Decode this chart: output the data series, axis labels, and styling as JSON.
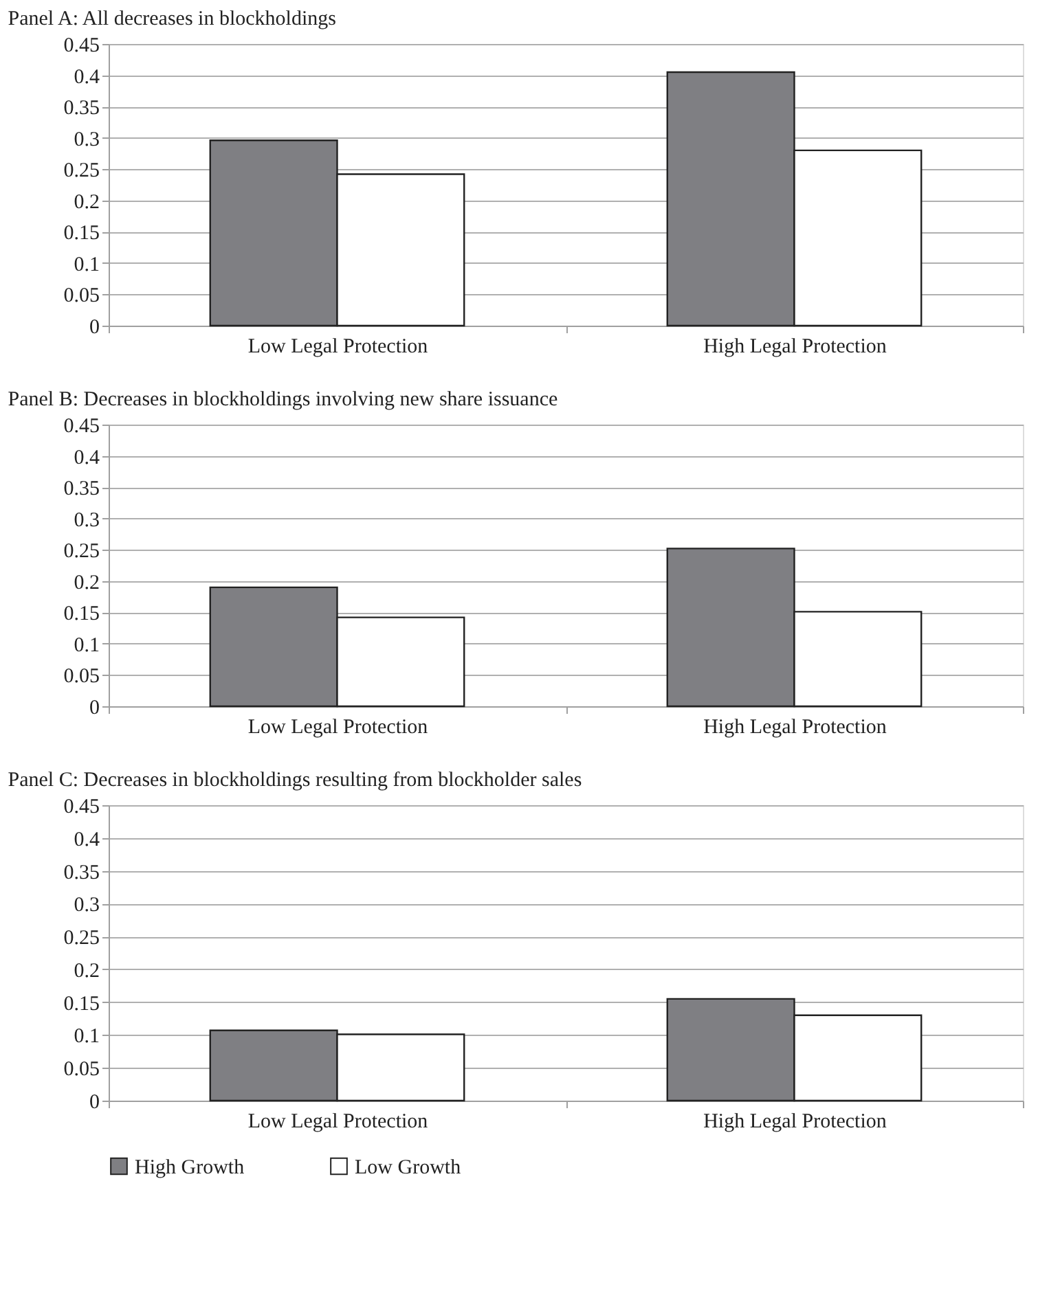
{
  "chart_data": [
    {
      "type": "bar",
      "title": "Panel A: All decreases in blockholdings",
      "categories": [
        "Low Legal Protection",
        "High Legal Protection"
      ],
      "series": [
        {
          "color": "#7f7f83",
          "values": [
            0.296,
            0.405
          ]
        },
        {
          "color": "#ffffff",
          "values": [
            0.242,
            0.28
          ]
        }
      ],
      "ylim": [
        0,
        0.45
      ],
      "yticks": [
        0,
        0.05,
        0.1,
        0.15,
        0.2,
        0.25,
        0.3,
        0.35,
        0.4,
        0.45
      ],
      "grid": "y"
    },
    {
      "type": "bar",
      "title": "Panel B: Decreases in blockholdings involving new share issuance",
      "categories": [
        "Low Legal Protection",
        "High Legal Protection"
      ],
      "series": [
        {
          "color": "#7f7f83",
          "values": [
            0.19,
            0.252
          ]
        },
        {
          "color": "#ffffff",
          "values": [
            0.142,
            0.151
          ]
        }
      ],
      "ylim": [
        0,
        0.45
      ],
      "yticks": [
        0,
        0.05,
        0.1,
        0.15,
        0.2,
        0.25,
        0.3,
        0.35,
        0.4,
        0.45
      ],
      "grid": "y"
    },
    {
      "type": "bar",
      "title": "Panel C: Decreases in blockholdings resulting from  blockholder sales",
      "categories": [
        "Low Legal Protection",
        "High Legal Protection"
      ],
      "series": [
        {
          "name": "High Growth",
          "color": "#7f7f83",
          "values": [
            0.107,
            0.155
          ]
        },
        {
          "name": "Low Growth",
          "color": "#ffffff",
          "values": [
            0.101,
            0.13
          ]
        }
      ],
      "ylim": [
        0,
        0.45
      ],
      "yticks": [
        0,
        0.05,
        0.1,
        0.15,
        0.2,
        0.25,
        0.3,
        0.35,
        0.4,
        0.45
      ],
      "grid": "y",
      "legend": "bottom"
    }
  ]
}
